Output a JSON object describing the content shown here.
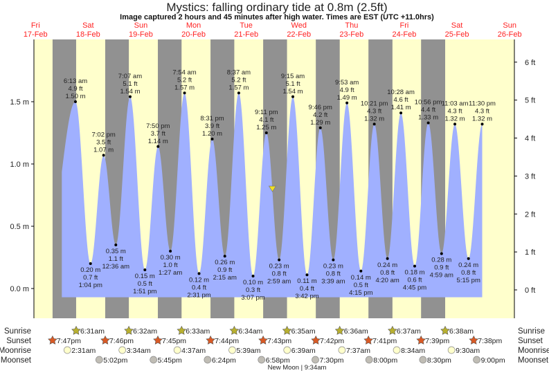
{
  "chart_data": {
    "type": "area",
    "title": "Mystics: falling  ordinary tide at 0.8m (2.5ft)",
    "subtitle": "Image captured 2 hours and 45 minutes after high water. Times are EST (UTC +11.0hrs)",
    "days": [
      {
        "dow": "Fri",
        "date": "17-Feb"
      },
      {
        "dow": "Sat",
        "date": "18-Feb"
      },
      {
        "dow": "Sun",
        "date": "19-Feb"
      },
      {
        "dow": "Mon",
        "date": "20-Feb"
      },
      {
        "dow": "Tue",
        "date": "21-Feb"
      },
      {
        "dow": "Wed",
        "date": "22-Feb"
      },
      {
        "dow": "Thu",
        "date": "23-Feb"
      },
      {
        "dow": "Fri",
        "date": "24-Feb"
      },
      {
        "dow": "Sat",
        "date": "25-Feb"
      },
      {
        "dow": "Sun",
        "date": "26-Feb"
      }
    ],
    "y_left": {
      "unit": "m",
      "ticks": [
        "0.0 m",
        "0.5 m",
        "1.0 m",
        "1.5 m"
      ],
      "tick_values": [
        0,
        0.5,
        1.0,
        1.5
      ],
      "range": [
        -0.1,
        1.85
      ]
    },
    "y_right": {
      "unit": "ft",
      "ticks": [
        "0 ft",
        "1 ft",
        "2 ft",
        "3 ft",
        "4 ft",
        "5 ft",
        "6 ft"
      ],
      "tick_values": [
        0,
        1,
        2,
        3,
        4,
        5,
        6
      ]
    },
    "current_level_m": 0.8,
    "tides": [
      {
        "day": 1,
        "type": "high",
        "time": "6:13 am",
        "m": "1.50 m",
        "ft": "4.9 ft",
        "value": 1.5
      },
      {
        "day": 1,
        "type": "low",
        "time": "1:04 pm",
        "m": "0.20 m",
        "ft": "0.7 ft",
        "value": 0.2
      },
      {
        "day": 1,
        "type": "high",
        "time": "7:02 pm",
        "m": "1.07 m",
        "ft": "3.5 ft",
        "value": 1.07
      },
      {
        "day": 2,
        "type": "low",
        "time": "12:36 am",
        "m": "0.35 m",
        "ft": "1.1 ft",
        "value": 0.35
      },
      {
        "day": 2,
        "type": "high",
        "time": "7:07 am",
        "m": "1.54 m",
        "ft": "5.1 ft",
        "value": 1.54
      },
      {
        "day": 2,
        "type": "low",
        "time": "1:51 pm",
        "m": "0.15 m",
        "ft": "0.5 ft",
        "value": 0.15
      },
      {
        "day": 2,
        "type": "high",
        "time": "7:50 pm",
        "m": "1.14 m",
        "ft": "3.7 ft",
        "value": 1.14
      },
      {
        "day": 3,
        "type": "low",
        "time": "1:27 am",
        "m": "0.30 m",
        "ft": "1.0 ft",
        "value": 0.3
      },
      {
        "day": 3,
        "type": "high",
        "time": "7:54 am",
        "m": "1.57 m",
        "ft": "5.2 ft",
        "value": 1.57
      },
      {
        "day": 3,
        "type": "low",
        "time": "2:31 pm",
        "m": "0.12 m",
        "ft": "0.4 ft",
        "value": 0.12
      },
      {
        "day": 3,
        "type": "high",
        "time": "8:31 pm",
        "m": "1.20 m",
        "ft": "3.9 ft",
        "value": 1.2
      },
      {
        "day": 4,
        "type": "low",
        "time": "2:15 am",
        "m": "0.26 m",
        "ft": "0.9 ft",
        "value": 0.26
      },
      {
        "day": 4,
        "type": "high",
        "time": "8:37 am",
        "m": "1.57 m",
        "ft": "5.2 ft",
        "value": 1.57
      },
      {
        "day": 4,
        "type": "low",
        "time": "3:07 pm",
        "m": "0.10 m",
        "ft": "0.3 ft",
        "value": 0.1
      },
      {
        "day": 4,
        "type": "high",
        "time": "9:11 pm",
        "m": "1.25 m",
        "ft": "4.1 ft",
        "value": 1.25
      },
      {
        "day": 5,
        "type": "low",
        "time": "2:59 am",
        "m": "0.23 m",
        "ft": "0.8 ft",
        "value": 0.23
      },
      {
        "day": 5,
        "type": "high",
        "time": "9:15 am",
        "m": "1.54 m",
        "ft": "5.1 ft",
        "value": 1.54
      },
      {
        "day": 5,
        "type": "low",
        "time": "3:42 pm",
        "m": "0.11 m",
        "ft": "0.4 ft",
        "value": 0.11
      },
      {
        "day": 5,
        "type": "high",
        "time": "9:46 pm",
        "m": "1.29 m",
        "ft": "4.2 ft",
        "value": 1.29
      },
      {
        "day": 6,
        "type": "low",
        "time": "3:39 am",
        "m": "0.23 m",
        "ft": "0.8 ft",
        "value": 0.23
      },
      {
        "day": 6,
        "type": "high",
        "time": "9:53 am",
        "m": "1.49 m",
        "ft": "4.9 ft",
        "value": 1.49
      },
      {
        "day": 6,
        "type": "low",
        "time": "4:15 pm",
        "m": "0.14 m",
        "ft": "0.5 ft",
        "value": 0.14
      },
      {
        "day": 6,
        "type": "high",
        "time": "10:21 pm",
        "m": "1.32 m",
        "ft": "4.3 ft",
        "value": 1.32
      },
      {
        "day": 7,
        "type": "low",
        "time": "4:20 am",
        "m": "0.24 m",
        "ft": "0.8 ft",
        "value": 0.24
      },
      {
        "day": 7,
        "type": "high",
        "time": "10:28 am",
        "m": "1.41 m",
        "ft": "4.6 ft",
        "value": 1.41
      },
      {
        "day": 7,
        "type": "low",
        "time": "4:45 pm",
        "m": "0.18 m",
        "ft": "0.6 ft",
        "value": 0.18
      },
      {
        "day": 7,
        "type": "high",
        "time": "10:56 pm",
        "m": "1.33 m",
        "ft": "4.4 ft",
        "value": 1.33
      },
      {
        "day": 8,
        "type": "low",
        "time": "4:59 am",
        "m": "0.28 m",
        "ft": "0.9 ft",
        "value": 0.28
      },
      {
        "day": 8,
        "type": "high",
        "time": "11:03 am",
        "m": "1.32 m",
        "ft": "4.3 ft",
        "value": 1.32
      },
      {
        "day": 8,
        "type": "low",
        "time": "5:15 pm",
        "m": "0.24 m",
        "ft": "0.8 ft",
        "value": 0.24
      },
      {
        "day": 8,
        "type": "high",
        "time": "11:30 pm",
        "m": "1.32 m",
        "ft": "4.3 ft",
        "value": 1.32
      }
    ],
    "astro": {
      "labels": {
        "sunrise": "Sunrise",
        "sunset": "Sunset",
        "moonrise": "Moonrise",
        "moonset": "Moonset"
      },
      "sunrise": [
        {
          "day": 1,
          "time": "6:31am"
        },
        {
          "day": 2,
          "time": "6:32am"
        },
        {
          "day": 3,
          "time": "6:33am"
        },
        {
          "day": 4,
          "time": "6:34am"
        },
        {
          "day": 5,
          "time": "6:35am"
        },
        {
          "day": 6,
          "time": "6:36am"
        },
        {
          "day": 7,
          "time": "6:37am"
        },
        {
          "day": 8,
          "time": "6:38am"
        }
      ],
      "sunset": [
        {
          "day": 0,
          "time": "7:47pm"
        },
        {
          "day": 1,
          "time": "7:46pm"
        },
        {
          "day": 2,
          "time": "7:45pm"
        },
        {
          "day": 3,
          "time": "7:44pm"
        },
        {
          "day": 4,
          "time": "7:43pm"
        },
        {
          "day": 5,
          "time": "7:42pm"
        },
        {
          "day": 6,
          "time": "7:41pm"
        },
        {
          "day": 7,
          "time": "7:39pm"
        },
        {
          "day": 8,
          "time": "7:38pm"
        }
      ],
      "moonrise": [
        {
          "day": 1,
          "time": "2:31am"
        },
        {
          "day": 2,
          "time": "3:34am"
        },
        {
          "day": 3,
          "time": "4:37am"
        },
        {
          "day": 4,
          "time": "5:39am"
        },
        {
          "day": 5,
          "time": "6:39am"
        },
        {
          "day": 6,
          "time": "7:37am"
        },
        {
          "day": 7,
          "time": "8:34am"
        },
        {
          "day": 8,
          "time": "9:30am"
        }
      ],
      "moonset": [
        {
          "day": 1,
          "time": "5:02pm"
        },
        {
          "day": 2,
          "time": "5:45pm"
        },
        {
          "day": 3,
          "time": "6:24pm"
        },
        {
          "day": 4,
          "time": "6:58pm"
        },
        {
          "day": 5,
          "time": "7:30pm"
        },
        {
          "day": 6,
          "time": "8:00pm"
        },
        {
          "day": 7,
          "time": "8:30pm"
        },
        {
          "day": 8,
          "time": "9:00pm"
        }
      ],
      "moon_phase": {
        "day": 5,
        "time": "9:34am",
        "text": "New Moon | 9:34am"
      }
    },
    "colors": {
      "day": "#ffffcc",
      "night": "#919191",
      "water": "#a0b0ff",
      "day_label": "#ff2020",
      "sunrise_star": "#b8b030",
      "sunset_star": "#d95a25",
      "moonrise": "#ffffcc",
      "moonset": "#c0bdb5",
      "marker": "#f0e020"
    }
  }
}
